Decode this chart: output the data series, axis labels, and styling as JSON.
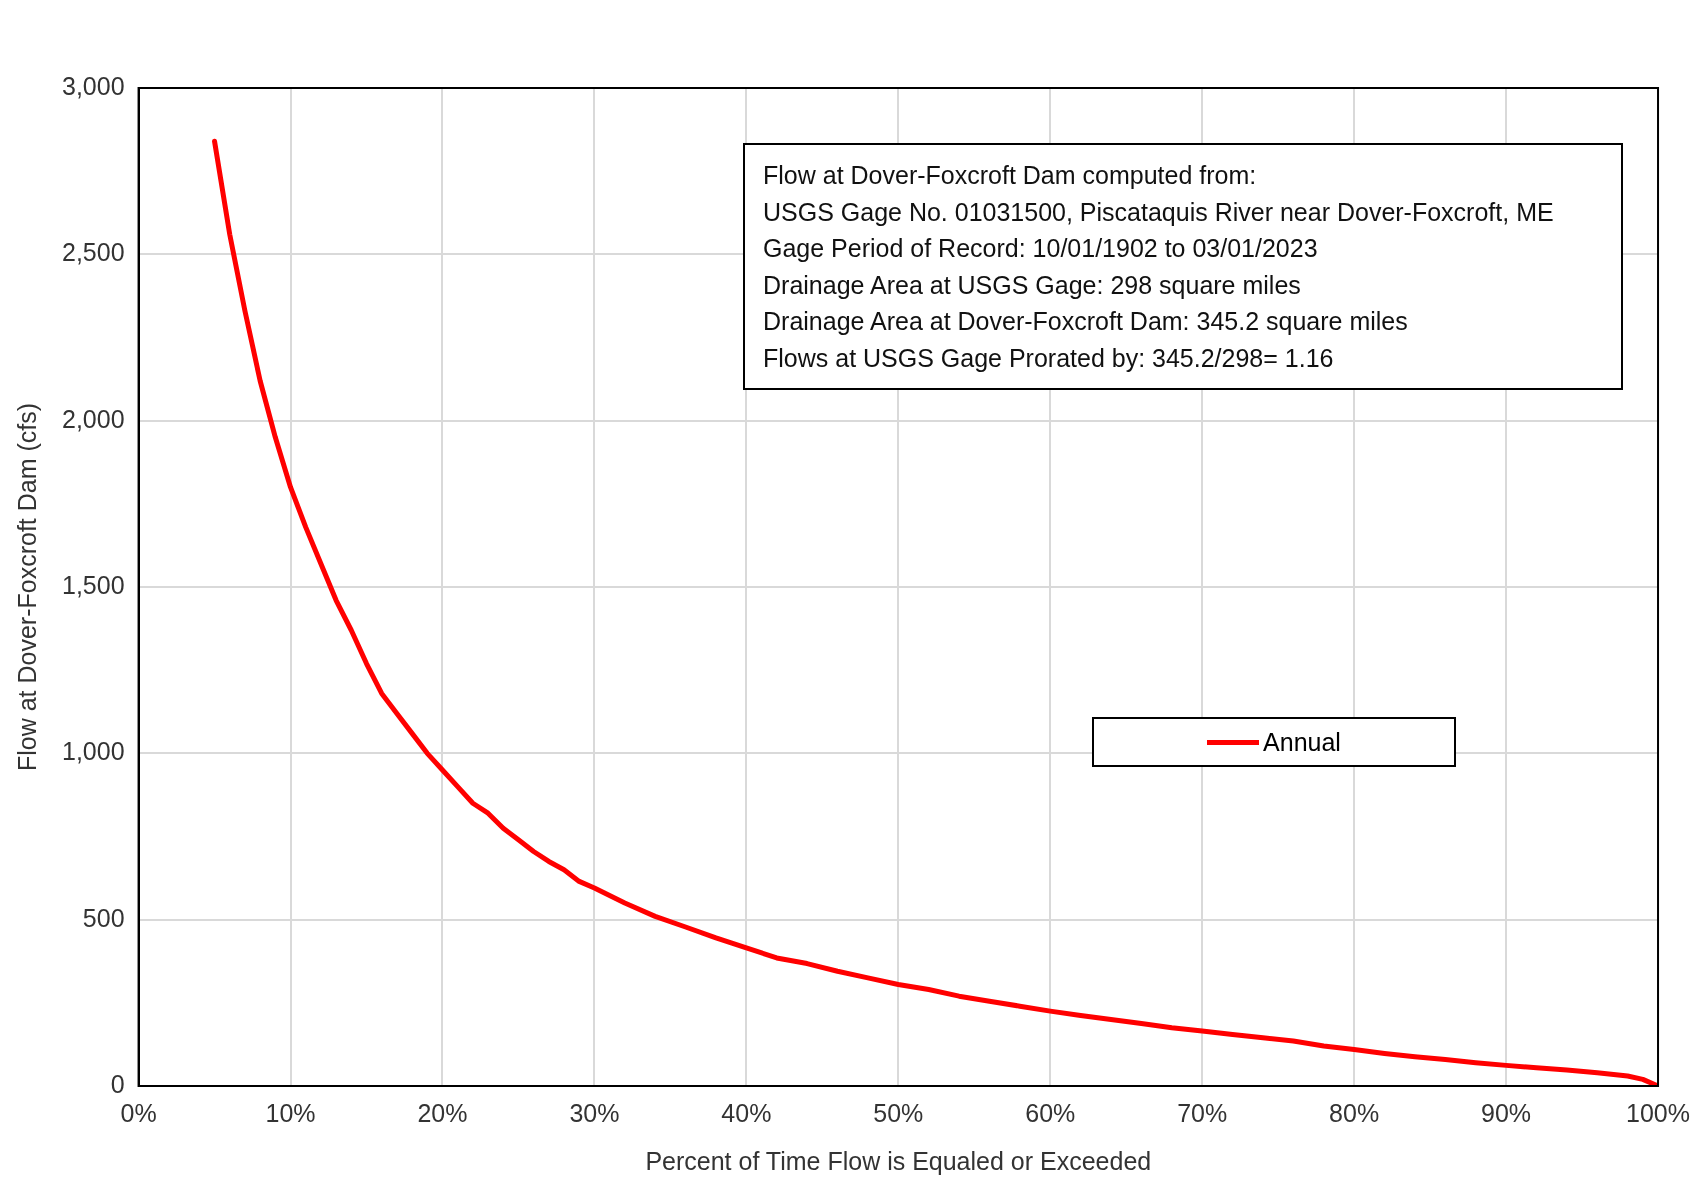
{
  "chart_data": {
    "type": "line",
    "xlabel": "Percent of Time Flow is Equaled or Exceeded",
    "ylabel": "Flow at Dover-Foxcroft Dam (cfs)",
    "x": [
      5,
      6,
      7,
      8,
      9,
      10,
      11,
      12,
      13,
      14,
      15,
      16,
      17,
      18,
      19,
      20,
      21,
      22,
      23,
      24,
      25,
      26,
      27,
      28,
      29,
      30,
      32,
      34,
      36,
      38,
      40,
      42,
      44,
      46,
      48,
      50,
      52,
      54,
      56,
      58,
      60,
      62,
      64,
      66,
      68,
      70,
      72,
      74,
      76,
      78,
      80,
      82,
      84,
      86,
      88,
      90,
      92,
      94,
      96,
      98,
      99,
      100
    ],
    "series": [
      {
        "name": "Annual",
        "color": "#ff0000",
        "values": [
          2840,
          2560,
          2330,
          2120,
          1950,
          1800,
          1680,
          1570,
          1460,
          1370,
          1270,
          1180,
          1120,
          1060,
          1000,
          950,
          900,
          850,
          820,
          775,
          740,
          705,
          675,
          650,
          615,
          595,
          550,
          510,
          478,
          445,
          415,
          385,
          368,
          345,
          325,
          305,
          290,
          270,
          255,
          240,
          225,
          212,
          200,
          188,
          175,
          165,
          155,
          145,
          135,
          120,
          110,
          98,
          88,
          80,
          70,
          62,
          55,
          48,
          40,
          30,
          20,
          0
        ]
      }
    ],
    "xlim": [
      0,
      100
    ],
    "xticks": [
      {
        "value": 0,
        "label": "0%"
      },
      {
        "value": 10,
        "label": "10%"
      },
      {
        "value": 20,
        "label": "20%"
      },
      {
        "value": 30,
        "label": "30%"
      },
      {
        "value": 40,
        "label": "40%"
      },
      {
        "value": 50,
        "label": "50%"
      },
      {
        "value": 60,
        "label": "60%"
      },
      {
        "value": 70,
        "label": "70%"
      },
      {
        "value": 80,
        "label": "80%"
      },
      {
        "value": 90,
        "label": "90%"
      },
      {
        "value": 100,
        "label": "100%"
      }
    ],
    "ylim": [
      0,
      3000
    ],
    "yticks": [
      {
        "value": 0,
        "label": "0"
      },
      {
        "value": 500,
        "label": "500"
      },
      {
        "value": 1000,
        "label": "1,000"
      },
      {
        "value": 1500,
        "label": "1,500"
      },
      {
        "value": 2000,
        "label": "2,000"
      },
      {
        "value": 2500,
        "label": "2,500"
      },
      {
        "value": 3000,
        "label": "3,000"
      }
    ],
    "grid": true,
    "legend": "right",
    "marker": "none",
    "line_style": "solid",
    "annotations": [
      "Flow at Dover-Foxcroft Dam computed from:",
      "USGS Gage No. 01031500, Piscataquis River near Dover-Foxcroft, ME",
      "Gage Period of Record: 10/01/1902 to 03/01/2023",
      "Drainage Area at USGS Gage: 298 square miles",
      "Drainage Area at Dover-Foxcroft Dam: 345.2 square miles",
      "Flows at USGS Gage Prorated by: 345.2/298= 1.16"
    ]
  }
}
